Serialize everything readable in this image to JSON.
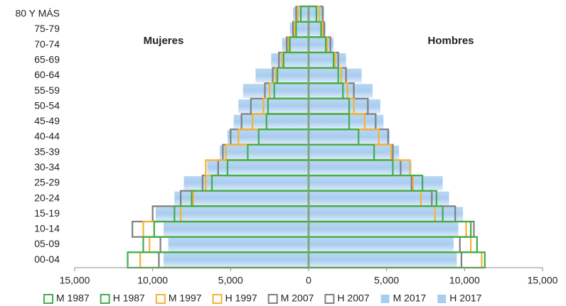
{
  "chart_data": {
    "type": "pyramid",
    "annotations": [
      "Mujeres",
      "Hombres"
    ],
    "categories": [
      "00-04",
      "05-09",
      "10-14",
      "15-19",
      "20-24",
      "25-29",
      "30-34",
      "35-39",
      "40-44",
      "45-49",
      "50-54",
      "55-59",
      "60-64",
      "65-69",
      "70-74",
      "75-79",
      "80 Y MÁS"
    ],
    "series": [
      {
        "name": "M 1987",
        "color": "#3fae49",
        "style": "outline",
        "values": [
          -11600,
          -10600,
          -9900,
          -8600,
          -7500,
          -6200,
          -5200,
          -3900,
          -3200,
          -2700,
          -2600,
          -2200,
          -2000,
          -1600,
          -1200,
          -800,
          -500
        ]
      },
      {
        "name": "H 1987",
        "color": "#3fae49",
        "style": "outline",
        "values": [
          11300,
          10800,
          10400,
          8600,
          8200,
          7300,
          5400,
          4200,
          3200,
          2600,
          2600,
          2200,
          1900,
          1600,
          1100,
          800,
          500
        ]
      },
      {
        "name": "M 1997",
        "color": "#f5b335",
        "style": "outline",
        "values": [
          -10800,
          -10200,
          -10600,
          -8200,
          -7400,
          -6600,
          -6600,
          -5300,
          -4500,
          -3600,
          -2900,
          -2500,
          -2100,
          -1700,
          -1300,
          -900,
          -700
        ]
      },
      {
        "name": "H 1997",
        "color": "#f5b335",
        "style": "outline",
        "values": [
          11100,
          10400,
          10100,
          8100,
          7200,
          6700,
          6500,
          5300,
          4500,
          3600,
          2900,
          2500,
          2100,
          1700,
          1200,
          900,
          700
        ]
      },
      {
        "name": "M 2007",
        "color": "#7f7f7f",
        "style": "outline",
        "values": [
          -9600,
          -9500,
          -11300,
          -10000,
          -8200,
          -6800,
          -5800,
          -5500,
          -5000,
          -4300,
          -3700,
          -2800,
          -2300,
          -1900,
          -1400,
          -1000,
          -800
        ]
      },
      {
        "name": "H 2007",
        "color": "#7f7f7f",
        "style": "outline",
        "values": [
          9800,
          9700,
          10600,
          9400,
          7900,
          6600,
          5900,
          5400,
          5100,
          4300,
          3800,
          2900,
          2400,
          1900,
          1400,
          1000,
          900
        ]
      },
      {
        "name": "M 2017",
        "color": "#a9cdef",
        "style": "fill",
        "values": [
          -9300,
          -9000,
          -9300,
          -9800,
          -8600,
          -8000,
          -6500,
          -5700,
          -5200,
          -4800,
          -4500,
          -4200,
          -3400,
          -2400,
          -1700,
          -1200,
          -1000
        ]
      },
      {
        "name": "H 2017",
        "color": "#a9cdef",
        "style": "fill",
        "values": [
          9500,
          9300,
          9600,
          9900,
          9000,
          8600,
          6600,
          5800,
          5200,
          4800,
          4600,
          4100,
          3400,
          2400,
          1600,
          1100,
          1000
        ]
      }
    ],
    "xlim": [
      -15000,
      15000
    ],
    "xticks": [
      {
        "value": -15000,
        "label": "15,000"
      },
      {
        "value": -10000,
        "label": "10,000"
      },
      {
        "value": -5000,
        "label": "5,000"
      },
      0,
      {
        "value": 5000,
        "label": "5,000"
      },
      {
        "value": 10000,
        "label": "10,000"
      },
      {
        "value": 15000,
        "label": "15,000"
      }
    ]
  }
}
